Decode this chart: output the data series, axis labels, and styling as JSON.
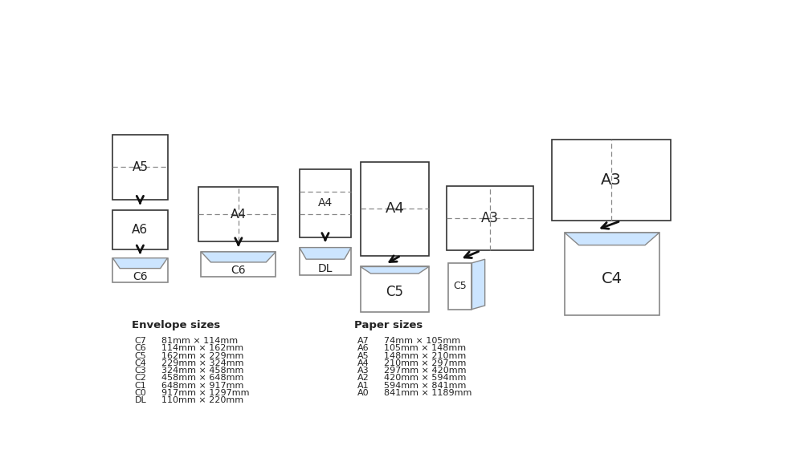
{
  "bg_color": "#ffffff",
  "envelope_fill": "#cce5ff",
  "envelope_edge": "#888888",
  "paper_edge": "#333333",
  "dashed_color": "#888888",
  "arrow_color": "#111111",
  "text_color": "#222222",
  "envelope_sizes_title": "Envelope sizes",
  "paper_sizes_title": "Paper sizes",
  "envelope_sizes": [
    [
      "C7",
      "81mm × 114mm"
    ],
    [
      "C6",
      "114mm × 162mm"
    ],
    [
      "C5",
      "162mm × 229mm"
    ],
    [
      "C4",
      "229mm × 324mm"
    ],
    [
      "C3",
      "324mm × 458mm"
    ],
    [
      "C2",
      "458mm × 648mm"
    ],
    [
      "C1",
      "648mm × 917mm"
    ],
    [
      "C0",
      "917mm × 1297mm"
    ],
    [
      "DL",
      "110mm × 220mm"
    ]
  ],
  "paper_sizes": [
    [
      "A7",
      "74mm × 105mm"
    ],
    [
      "A6",
      "105mm × 148mm"
    ],
    [
      "A5",
      "148mm × 210mm"
    ],
    [
      "A4",
      "210mm × 297mm"
    ],
    [
      "A3",
      "297mm × 420mm"
    ],
    [
      "A2",
      "420mm × 594mm"
    ],
    [
      "A1",
      "594mm × 841mm"
    ],
    [
      "A0",
      "841mm × 1189mm"
    ]
  ]
}
